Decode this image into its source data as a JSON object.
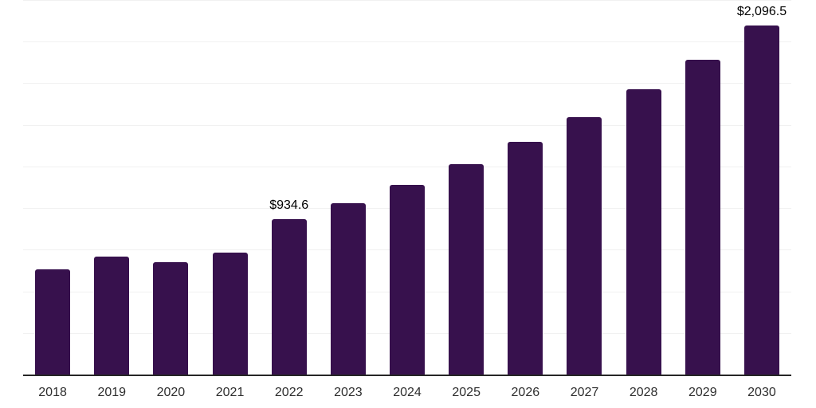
{
  "chart_data": {
    "type": "bar",
    "title": "",
    "xlabel": "",
    "ylabel": "",
    "categories": [
      "2018",
      "2019",
      "2020",
      "2021",
      "2022",
      "2023",
      "2024",
      "2025",
      "2026",
      "2027",
      "2028",
      "2029",
      "2030"
    ],
    "values": [
      634,
      707,
      674,
      734,
      934.6,
      1030,
      1140,
      1262,
      1400,
      1548,
      1713,
      1890,
      2096.5
    ],
    "value_labels": {
      "2022": "$934.6",
      "2030": "$2,096.5"
    },
    "ylim": [
      0,
      2250
    ],
    "gridline_step": 250,
    "grid": "horizontal",
    "legend_position": "none",
    "colors": {
      "bar": "#37114d",
      "axis_line": "#262626",
      "gridline": "#f1f1f1",
      "tick_label": "#2e2e2e",
      "data_label": "#000000",
      "background": "#ffffff"
    }
  }
}
